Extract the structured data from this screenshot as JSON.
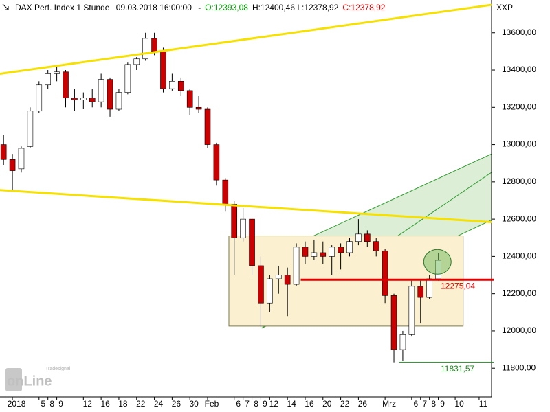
{
  "chart_data": {
    "type": "candlestick",
    "title": "DAX Perf. Index 1 Stunde",
    "subtitle": "09.03.2018 16:00:00",
    "separator": "-",
    "ohlc_labels": [
      {
        "text": "O:12393,08",
        "color": "#00a000"
      },
      {
        "text": "H:12400,46 L:12378,92",
        "color": "#000000"
      },
      {
        "text": "C:12378,92",
        "color": "#e00000"
      }
    ],
    "symbol": "XXP",
    "logo": {
      "top": "Tradesignal",
      "main": "onLine"
    },
    "up_color": "#ffffff",
    "down_color": "#cc0000",
    "xlim": [
      -1.4,
      54
    ],
    "ylim": [
      11646,
      13776
    ],
    "yticks": [
      {
        "value": 11800,
        "label": "11800,00"
      },
      {
        "value": 12000,
        "label": "12000,00"
      },
      {
        "value": 12200,
        "label": "12200,00"
      },
      {
        "value": 12400,
        "label": "12400,00"
      },
      {
        "value": 12600,
        "label": "12600,00"
      },
      {
        "value": 12800,
        "label": "12800,00"
      },
      {
        "value": 13000,
        "label": "13000,00"
      },
      {
        "value": 13200,
        "label": "13200,00"
      },
      {
        "value": 13400,
        "label": "13400,00"
      },
      {
        "value": 13600,
        "label": "13600,00"
      }
    ],
    "xticks": [
      {
        "value": 0,
        "label": "2018"
      },
      {
        "value": 3,
        "label": "5"
      },
      {
        "value": 4,
        "label": "8"
      },
      {
        "value": 5,
        "label": "9"
      },
      {
        "value": 8,
        "label": "12"
      },
      {
        "value": 10,
        "label": "16"
      },
      {
        "value": 12,
        "label": "18"
      },
      {
        "value": 14,
        "label": "22"
      },
      {
        "value": 16,
        "label": "24"
      },
      {
        "value": 18,
        "label": "26"
      },
      {
        "value": 20,
        "label": "30"
      },
      {
        "value": 22,
        "label": "Feb"
      },
      {
        "value": 25,
        "label": "6"
      },
      {
        "value": 26,
        "label": "7"
      },
      {
        "value": 27,
        "label": "8"
      },
      {
        "value": 28,
        "label": "9"
      },
      {
        "value": 29,
        "label": "12"
      },
      {
        "value": 31,
        "label": "14"
      },
      {
        "value": 33,
        "label": "16"
      },
      {
        "value": 35,
        "label": "20"
      },
      {
        "value": 37,
        "label": "22"
      },
      {
        "value": 39,
        "label": "26"
      },
      {
        "value": 42,
        "label": "Mrz"
      },
      {
        "value": 45,
        "label": "6"
      },
      {
        "value": 46,
        "label": "7"
      },
      {
        "value": 47,
        "label": "8"
      },
      {
        "value": 48,
        "label": "9"
      },
      {
        "value": 49.9,
        "label": "10"
      },
      {
        "value": 52.6,
        "label": "11"
      }
    ],
    "x": [
      -1,
      0,
      1,
      2,
      3,
      4,
      5,
      6,
      7,
      8,
      9,
      10,
      11,
      12,
      13,
      14,
      15,
      16,
      17,
      18,
      19,
      20,
      21,
      22,
      23,
      24,
      25,
      26,
      27,
      28,
      29,
      30,
      31,
      32,
      33,
      34,
      35,
      36,
      37,
      38,
      39,
      40,
      41,
      42,
      43,
      44,
      45,
      46,
      47,
      48
    ],
    "open": [
      13000,
      12920,
      12870,
      12990,
      13180,
      13320,
      13380,
      13390,
      13250,
      13240,
      13250,
      13230,
      13350,
      13190,
      13280,
      13430,
      13460,
      13570,
      13500,
      13300,
      13340,
      13290,
      13200,
      13190,
      13000,
      12810,
      12680,
      12500,
      12600,
      12350,
      12150,
      12280,
      12300,
      12250,
      12450,
      12400,
      12420,
      12400,
      12450,
      12420,
      12480,
      12520,
      12480,
      12430,
      12190,
      11900,
      11980,
      12240,
      12180,
      12280
    ],
    "high": [
      13050,
      12950,
      12990,
      13200,
      13340,
      13400,
      13420,
      13400,
      13300,
      13280,
      13300,
      13380,
      13360,
      13300,
      13440,
      13470,
      13600,
      13600,
      13520,
      13380,
      13360,
      13300,
      13260,
      13200,
      13010,
      12820,
      12700,
      12660,
      12610,
      12400,
      12300,
      12350,
      12340,
      12470,
      12480,
      12490,
      12480,
      12460,
      12470,
      12500,
      12600,
      12540,
      12500,
      12440,
      12200,
      12000,
      12270,
      12270,
      12300,
      12420
    ],
    "low": [
      12890,
      12750,
      12850,
      12980,
      13170,
      13300,
      13340,
      13200,
      13180,
      13190,
      13200,
      13200,
      13150,
      13180,
      13270,
      13400,
      13450,
      13480,
      13280,
      13290,
      13260,
      13160,
      13170,
      12980,
      12780,
      12640,
      12300,
      12480,
      12300,
      12020,
      12100,
      12200,
      12080,
      12240,
      12360,
      12380,
      12360,
      12300,
      12330,
      12400,
      12460,
      12450,
      12400,
      12150,
      11831.57,
      11840,
      11970,
      12040,
      12170,
      12270
    ],
    "close": [
      12920,
      12860,
      12980,
      13180,
      13320,
      13380,
      13390,
      13250,
      13240,
      13250,
      13230,
      13350,
      13190,
      13280,
      13430,
      13460,
      13570,
      13500,
      13300,
      13340,
      13290,
      13200,
      13190,
      13000,
      12810,
      12680,
      12500,
      12600,
      12350,
      12150,
      12280,
      12300,
      12250,
      12450,
      12400,
      12420,
      12400,
      12450,
      12420,
      12480,
      12520,
      12480,
      12430,
      12190,
      11900,
      11980,
      12240,
      12180,
      12280,
      12379
    ],
    "drawings": [
      {
        "kind": "trendline",
        "color": "#f5e000",
        "x": [
          -1.4,
          54
        ],
        "y": [
          13380,
          13750
        ]
      },
      {
        "kind": "trendline",
        "color": "#f5e000",
        "x": [
          -1.4,
          54
        ],
        "y": [
          12756,
          12584
        ]
      },
      {
        "kind": "channel",
        "color": "#2e9a2e",
        "x": [
          28.1,
          54
        ],
        "y": [
          12382,
          12950
        ],
        "y_low": [
          12015,
          12595
        ],
        "y_mid": [
          12015,
          12851
        ]
      },
      {
        "kind": "rectangle",
        "color": "#7a7a50",
        "x": [
          24.4,
          50.8
        ],
        "y": [
          12510,
          12026
        ]
      },
      {
        "kind": "ellipse",
        "color": "#2e7a2e",
        "x": [
          47.9
        ],
        "y": [
          12371
        ]
      }
    ],
    "annotations": [
      {
        "text": "12275,04",
        "value": 12275.04,
        "x": 32.5,
        "color": "#e00000"
      },
      {
        "text": "11831,57",
        "value": 11831.57,
        "x": 43.6,
        "color": "#1a8a1a"
      }
    ]
  }
}
